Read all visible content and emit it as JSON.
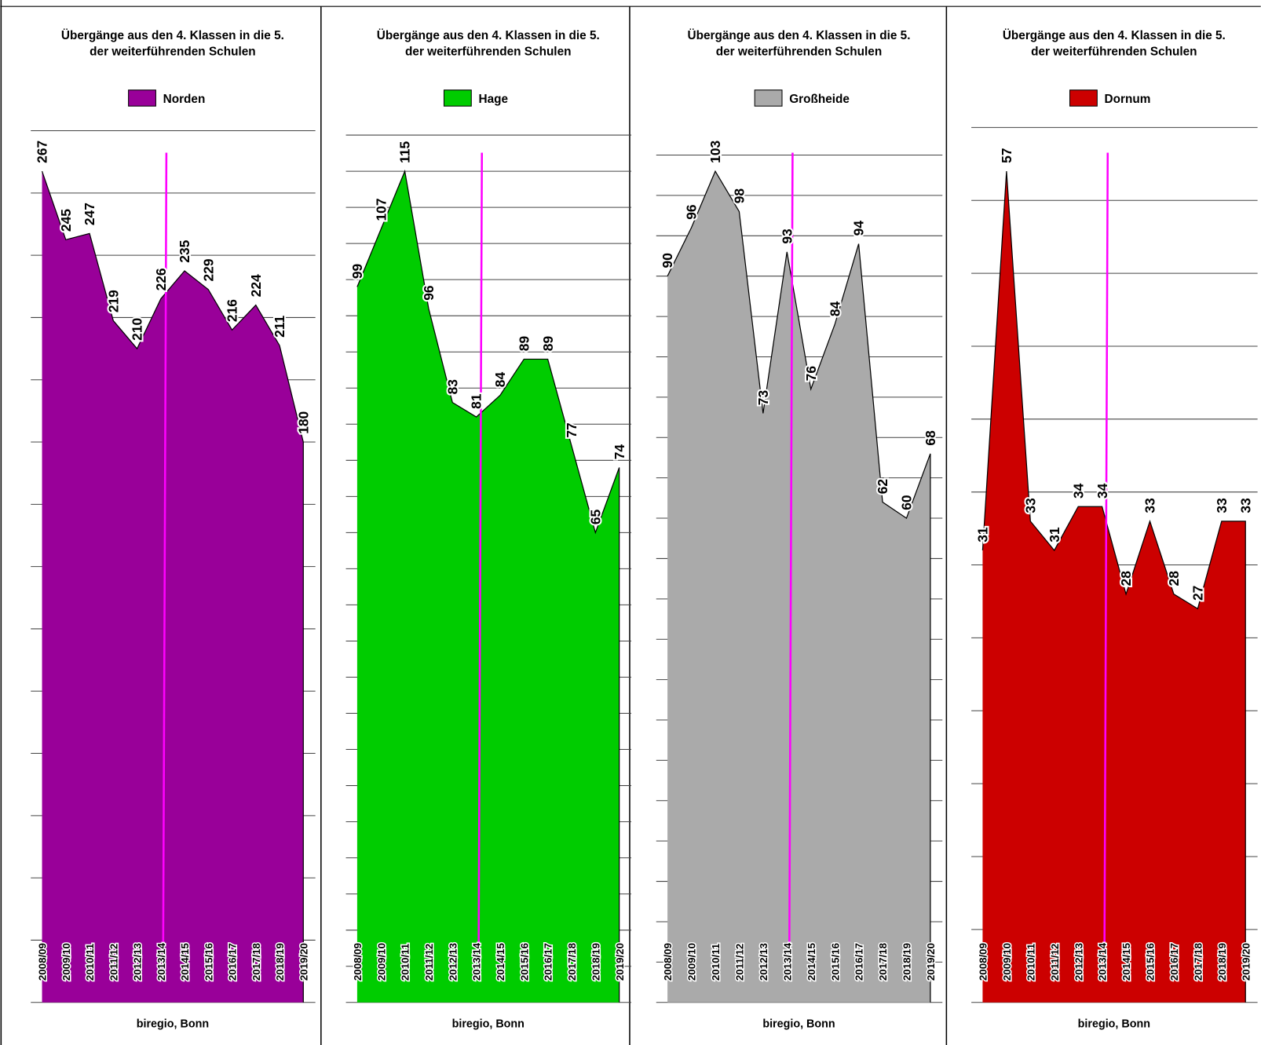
{
  "chart_data": [
    {
      "type": "area",
      "title": [
        "Übergänge aus den 4. Klassen in die 5.",
        "der weiterführenden Schulen"
      ],
      "categories": [
        "2008/09",
        "2009/10",
        "2010/11",
        "2011/12",
        "2012/13",
        "2013/14",
        "2014/15",
        "2015/16",
        "2016/17",
        "2017/18",
        "2018/19",
        "2019/20"
      ],
      "series": [
        {
          "name": "Norden",
          "color": "#990099",
          "values": [
            267,
            245,
            247,
            219,
            210,
            226,
            235,
            229,
            216,
            224,
            211,
            180
          ]
        }
      ],
      "ylim": [
        0,
        280
      ],
      "yticks": [
        0,
        20,
        40,
        60,
        80,
        100,
        120,
        140,
        160,
        180,
        200,
        220,
        240,
        260,
        280
      ],
      "grid": true,
      "source": "biregio, Bonn"
    },
    {
      "type": "area",
      "title": [
        "Übergänge aus den 4. Klassen in die 5.",
        "der weiterführenden Schulen"
      ],
      "categories": [
        "2008/09",
        "2009/10",
        "2010/11",
        "2011/12",
        "2012/13",
        "2013/14",
        "2014/15",
        "2015/16",
        "2016/17",
        "2017/18",
        "2018/19",
        "2019/20"
      ],
      "series": [
        {
          "name": "Hage",
          "color": "#00cc00",
          "values": [
            99,
            107,
            115,
            96,
            83,
            81,
            84,
            89,
            89,
            77,
            65,
            74
          ]
        }
      ],
      "ylim": [
        0,
        120
      ],
      "yticks": [
        0,
        5,
        10,
        15,
        20,
        25,
        30,
        35,
        40,
        45,
        50,
        55,
        60,
        65,
        70,
        75,
        80,
        85,
        90,
        95,
        100,
        105,
        110,
        115,
        120
      ],
      "grid": true,
      "source": "biregio, Bonn"
    },
    {
      "type": "area",
      "title": [
        "Übergänge aus den 4. Klassen in die 5.",
        "der weiterführenden Schulen"
      ],
      "categories": [
        "2008/09",
        "2009/10",
        "2010/11",
        "2011/12",
        "2012/13",
        "2013/14",
        "2014/15",
        "2015/16",
        "2016/17",
        "2017/18",
        "2018/19",
        "2019/20"
      ],
      "series": [
        {
          "name": "Großheide",
          "color": "#aaaaaa",
          "values": [
            90,
            96,
            103,
            98,
            73,
            93,
            76,
            84,
            94,
            62,
            60,
            68
          ]
        }
      ],
      "ylim": [
        0,
        105
      ],
      "yticks": [
        0,
        5,
        10,
        15,
        20,
        25,
        30,
        35,
        40,
        45,
        50,
        55,
        60,
        65,
        70,
        75,
        80,
        85,
        90,
        95,
        100,
        105
      ],
      "grid": true,
      "source": "biregio, Bonn"
    },
    {
      "type": "area",
      "title": [
        "Übergänge aus den 4. Klassen in die 5.",
        "der weiterführenden Schulen"
      ],
      "categories": [
        "2008/09",
        "2009/10",
        "2010/11",
        "2011/12",
        "2012/13",
        "2013/14",
        "2014/15",
        "2015/16",
        "2016/17",
        "2017/18",
        "2018/19",
        "2019/20"
      ],
      "series": [
        {
          "name": "Dornum",
          "color": "#cc0000",
          "values": [
            31,
            57,
            33,
            31,
            34,
            34,
            28,
            33,
            28,
            27,
            33,
            33
          ]
        }
      ],
      "ylim": [
        0,
        60
      ],
      "yticks": [
        0,
        5,
        10,
        15,
        20,
        25,
        30,
        35,
        40,
        45,
        50,
        55,
        60
      ],
      "grid": true,
      "source": "biregio, Bonn"
    }
  ]
}
